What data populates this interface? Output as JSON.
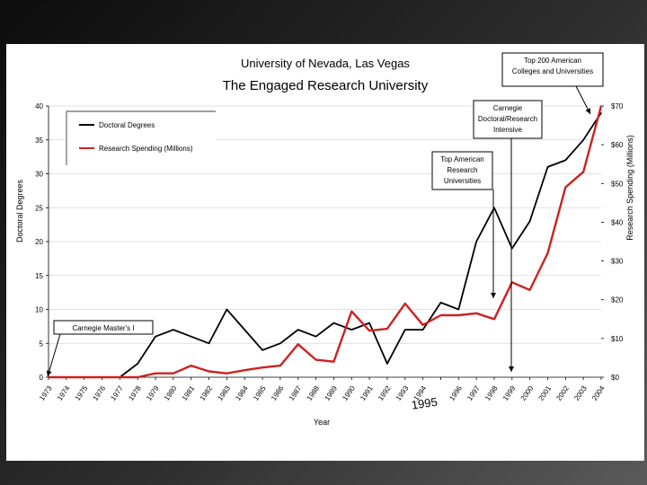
{
  "chart_data": {
    "type": "line",
    "title": "University of Nevada, Las Vegas",
    "subtitle": "The Engaged Research University",
    "xlabel": "Year",
    "ylabel": "Doctoral Degrees",
    "y2label": "Research Spending (Millions)",
    "categories": [
      "1973",
      "1974",
      "1975",
      "1976",
      "1977",
      "1978",
      "1979",
      "1980",
      "1981",
      "1982",
      "1983",
      "1984",
      "1985",
      "1986",
      "1987",
      "1988",
      "1989",
      "1990",
      "1991",
      "1992",
      "1993",
      "1994",
      "1995",
      "1996",
      "1997",
      "1998",
      "1999",
      "2000",
      "2001",
      "2002",
      "2003",
      "2004"
    ],
    "ylim": [
      0,
      40
    ],
    "y2lim": [
      0,
      70
    ],
    "y_ticks": [
      "0",
      "5",
      "10",
      "15",
      "20",
      "25",
      "30",
      "35",
      "40"
    ],
    "y2_ticks": [
      "$0",
      "$10",
      "$20",
      "$30",
      "$40",
      "$50",
      "$60",
      "$70"
    ],
    "handwritten_year": "1995",
    "series": [
      {
        "name": "Doctoral Degrees",
        "axis": "left",
        "color": "#000000",
        "values": [
          0,
          0,
          0,
          0,
          0,
          2,
          6,
          7,
          6,
          5,
          10,
          7,
          4,
          5,
          7,
          6,
          8,
          7,
          8,
          2,
          7,
          7,
          11,
          10,
          20,
          25,
          19,
          23,
          31,
          32,
          35,
          39
        ]
      },
      {
        "name": "Research Spending (Millions)",
        "axis": "right",
        "color": "#cc2222",
        "values": [
          0,
          0,
          0,
          0,
          0,
          0,
          1,
          1,
          3,
          1.5,
          1,
          1.8,
          2.5,
          3,
          8.5,
          4.5,
          4,
          17,
          12,
          12.5,
          19,
          13.5,
          16,
          16,
          16.5,
          15,
          24.5,
          22.5,
          32,
          49,
          53,
          70
        ]
      }
    ],
    "annotations": [
      {
        "lines": [
          "Carnegie Master's I"
        ],
        "year_index": 0
      },
      {
        "lines": [
          "Top American",
          "Research",
          "Universities"
        ],
        "year_index": 26
      },
      {
        "lines": [
          "Carnegie",
          "Doctoral/Research",
          "Intensive"
        ],
        "year_index": 27
      },
      {
        "lines": [
          "Top 200 American",
          "Colleges and Universities"
        ],
        "year_index": 31
      }
    ]
  }
}
